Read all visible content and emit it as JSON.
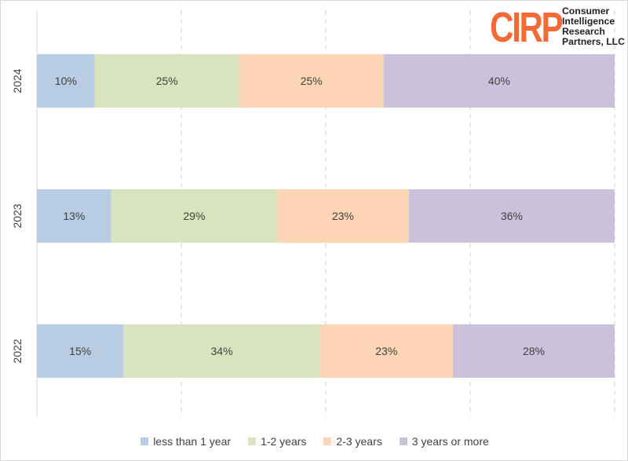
{
  "chart_data": {
    "type": "bar",
    "orientation": "horizontal",
    "stacked": true,
    "normalized_percent": true,
    "categories": [
      "2024",
      "2023",
      "2022"
    ],
    "series": [
      {
        "name": "less than 1 year",
        "color": "#b8cce4",
        "values": [
          10,
          13,
          15
        ],
        "labels": [
          "10%",
          "13%",
          "15%"
        ]
      },
      {
        "name": "1-2 years",
        "color": "#d7e4bd",
        "values": [
          25,
          29,
          34
        ],
        "labels": [
          "25%",
          "29%",
          "34%"
        ]
      },
      {
        "name": "2-3 years",
        "color": "#fcd5b5",
        "values": [
          25,
          23,
          23
        ],
        "labels": [
          "25%",
          "23%",
          "23%"
        ]
      },
      {
        "name": "3 years or more",
        "color": "#ccc1da",
        "values": [
          40,
          36,
          28
        ],
        "labels": [
          "40%",
          "36%",
          "28%"
        ]
      }
    ],
    "xlim": [
      0,
      100
    ],
    "grid": "vertical dashed",
    "legend": "bottom-center"
  },
  "logo": {
    "mark": "CIRP",
    "lines": [
      "Consumer",
      "Intelligence",
      "Research",
      "Partners, LLC"
    ],
    "color": "#f26a35"
  }
}
